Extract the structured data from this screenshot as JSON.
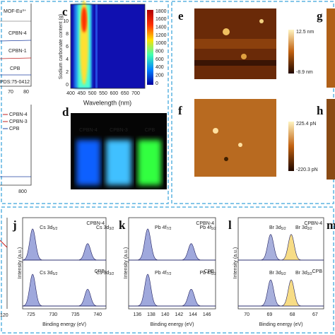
{
  "left_partial": {
    "xrd_labels": [
      "MOF-Eu³⁺",
      "CPBN-4",
      "CPBN-1",
      "CPB",
      "PDS:75-0412"
    ],
    "xrd_xticks": [
      "70",
      "80"
    ],
    "pl_legend": [
      "CPBN-4",
      "CPBN-3",
      "CPB"
    ],
    "pl_xtick": "800"
  },
  "panel_c": {
    "letter": "c",
    "ylabel": "Sodium carbonate content (g)",
    "yticks": [
      "0",
      "2",
      "4",
      "6",
      "8",
      "10"
    ],
    "xlabel": "Wavelength (nm)",
    "xticks": [
      "400",
      "450",
      "500",
      "550",
      "600",
      "650",
      "700"
    ],
    "colorbar": [
      "1800",
      "1600",
      "1400",
      "1200",
      "1000",
      "800",
      "600",
      "400",
      "200",
      "0"
    ]
  },
  "panel_d": {
    "letter": "d",
    "samples": [
      "CPBN-4",
      "CPBN-3",
      "CPB"
    ]
  },
  "panel_e": {
    "letter": "e",
    "scale_max": "12.5 nm",
    "scale_min": "-8.9 nm"
  },
  "panel_f": {
    "letter": "f",
    "scale_max": "225.4 pN",
    "scale_min": "-220.3 pN"
  },
  "panel_g": {
    "letter": "g"
  },
  "panel_h": {
    "letter": "h"
  },
  "panel_i": {
    "xtick": "120"
  },
  "xps": [
    {
      "letter": "j",
      "top": "CPBN-4",
      "bottom": "CPB",
      "peak1": {
        "text": "Cs 3d",
        "sub": "5/2"
      },
      "peak2": {
        "text": "Cs 3d",
        "sub": "3/2"
      },
      "xticks": [
        "725",
        "730",
        "735",
        "740"
      ],
      "xlabel": "Binding energy (eV)",
      "ylabel": "Intensity (a.u.)"
    },
    {
      "letter": "k",
      "top": "CPBN-4",
      "bottom": "CPB",
      "peak1": {
        "text": "Pb 4f",
        "sub": "7/2"
      },
      "peak2": {
        "text": "Pb 4f",
        "sub": "5/2"
      },
      "xticks": [
        "136",
        "138",
        "140",
        "142",
        "144",
        "146"
      ],
      "xlabel": "Binding energy (eV)",
      "ylabel": "Intensity (a.u.)"
    },
    {
      "letter": "l",
      "top": "CPBN-4",
      "bottom": "CPB",
      "peak1": {
        "text": "Br 3d",
        "sub": "5/2"
      },
      "peak2": {
        "text": "Br 3d",
        "sub": "3/2"
      },
      "xticks": [
        "70",
        "69",
        "68",
        "67"
      ],
      "xlabel": "Binding energy (eV)",
      "ylabel": "Intensity (a.u.)"
    }
  ],
  "panel_m": {
    "letter": "m"
  }
}
